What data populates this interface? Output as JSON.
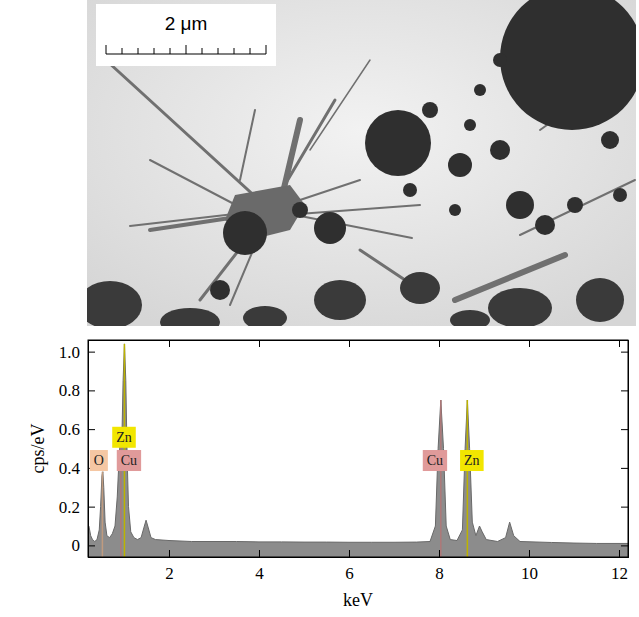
{
  "micrograph": {
    "scale_bar": "2 μm"
  },
  "chart_data": {
    "type": "area",
    "x_label": "keV",
    "y_label": "cps/eV",
    "xlim": [
      0.2,
      12.2
    ],
    "ylim": [
      -0.06,
      1.06
    ],
    "xticks": [
      2,
      4,
      6,
      8,
      10,
      12
    ],
    "yticks": [
      0,
      0.2,
      0.4,
      0.6,
      0.8,
      {
        "value": 1,
        "label": "1.0"
      }
    ],
    "grid": false,
    "color": "#8c8c8c",
    "x": [
      0.22,
      0.26,
      0.3,
      0.35,
      0.4,
      0.45,
      0.48,
      0.51,
      0.53,
      0.55,
      0.58,
      0.62,
      0.68,
      0.74,
      0.8,
      0.85,
      0.89,
      0.92,
      0.95,
      0.98,
      1.01,
      1.04,
      1.07,
      1.1,
      1.15,
      1.22,
      1.3,
      1.38,
      1.44,
      1.49,
      1.54,
      1.6,
      1.7,
      2.0,
      2.5,
      3.0,
      3.5,
      4.0,
      4.5,
      5.0,
      5.5,
      6.0,
      6.5,
      7.0,
      7.5,
      7.8,
      7.92,
      7.98,
      8.04,
      8.1,
      8.16,
      8.25,
      8.4,
      8.52,
      8.58,
      8.63,
      8.68,
      8.74,
      8.82,
      8.9,
      8.96,
      9.05,
      9.3,
      9.48,
      9.57,
      9.66,
      9.8,
      10.5,
      11.0,
      11.5,
      12.0,
      12.2
    ],
    "values": [
      0.1,
      0.05,
      0.03,
      0.02,
      0.03,
      0.08,
      0.2,
      0.36,
      0.38,
      0.3,
      0.12,
      0.05,
      0.04,
      0.06,
      0.1,
      0.25,
      0.45,
      0.55,
      0.52,
      0.85,
      1.04,
      0.85,
      0.45,
      0.2,
      0.07,
      0.04,
      0.03,
      0.04,
      0.09,
      0.13,
      0.09,
      0.04,
      0.03,
      0.025,
      0.02,
      0.02,
      0.02,
      0.018,
      0.018,
      0.017,
      0.017,
      0.016,
      0.016,
      0.016,
      0.017,
      0.02,
      0.1,
      0.5,
      0.75,
      0.5,
      0.1,
      0.03,
      0.025,
      0.08,
      0.5,
      0.75,
      0.5,
      0.12,
      0.05,
      0.1,
      0.07,
      0.03,
      0.02,
      0.04,
      0.12,
      0.05,
      0.02,
      0.015,
      0.012,
      0.01,
      0.01,
      0.01
    ],
    "annotations": [
      {
        "text": "O",
        "x": 0.44,
        "y": 0.44,
        "energy": 0.52,
        "peak": 0.38,
        "color": "#f5c7a3"
      },
      {
        "text": "Zn",
        "x": 1.0,
        "y": 0.56,
        "energy": 1.01,
        "peak": 1.04,
        "color": "#f2e600"
      },
      {
        "text": "Cu",
        "x": 1.11,
        "y": 0.44,
        "energy": 0.93,
        "peak": 0.55,
        "color": "#e09a9a"
      },
      {
        "text": "Cu",
        "x": 7.91,
        "y": 0.44,
        "energy": 8.04,
        "peak": 0.75,
        "color": "#e09a9a"
      },
      {
        "text": "Zn",
        "x": 8.73,
        "y": 0.44,
        "energy": 8.63,
        "peak": 0.75,
        "color": "#f2e600"
      }
    ]
  }
}
